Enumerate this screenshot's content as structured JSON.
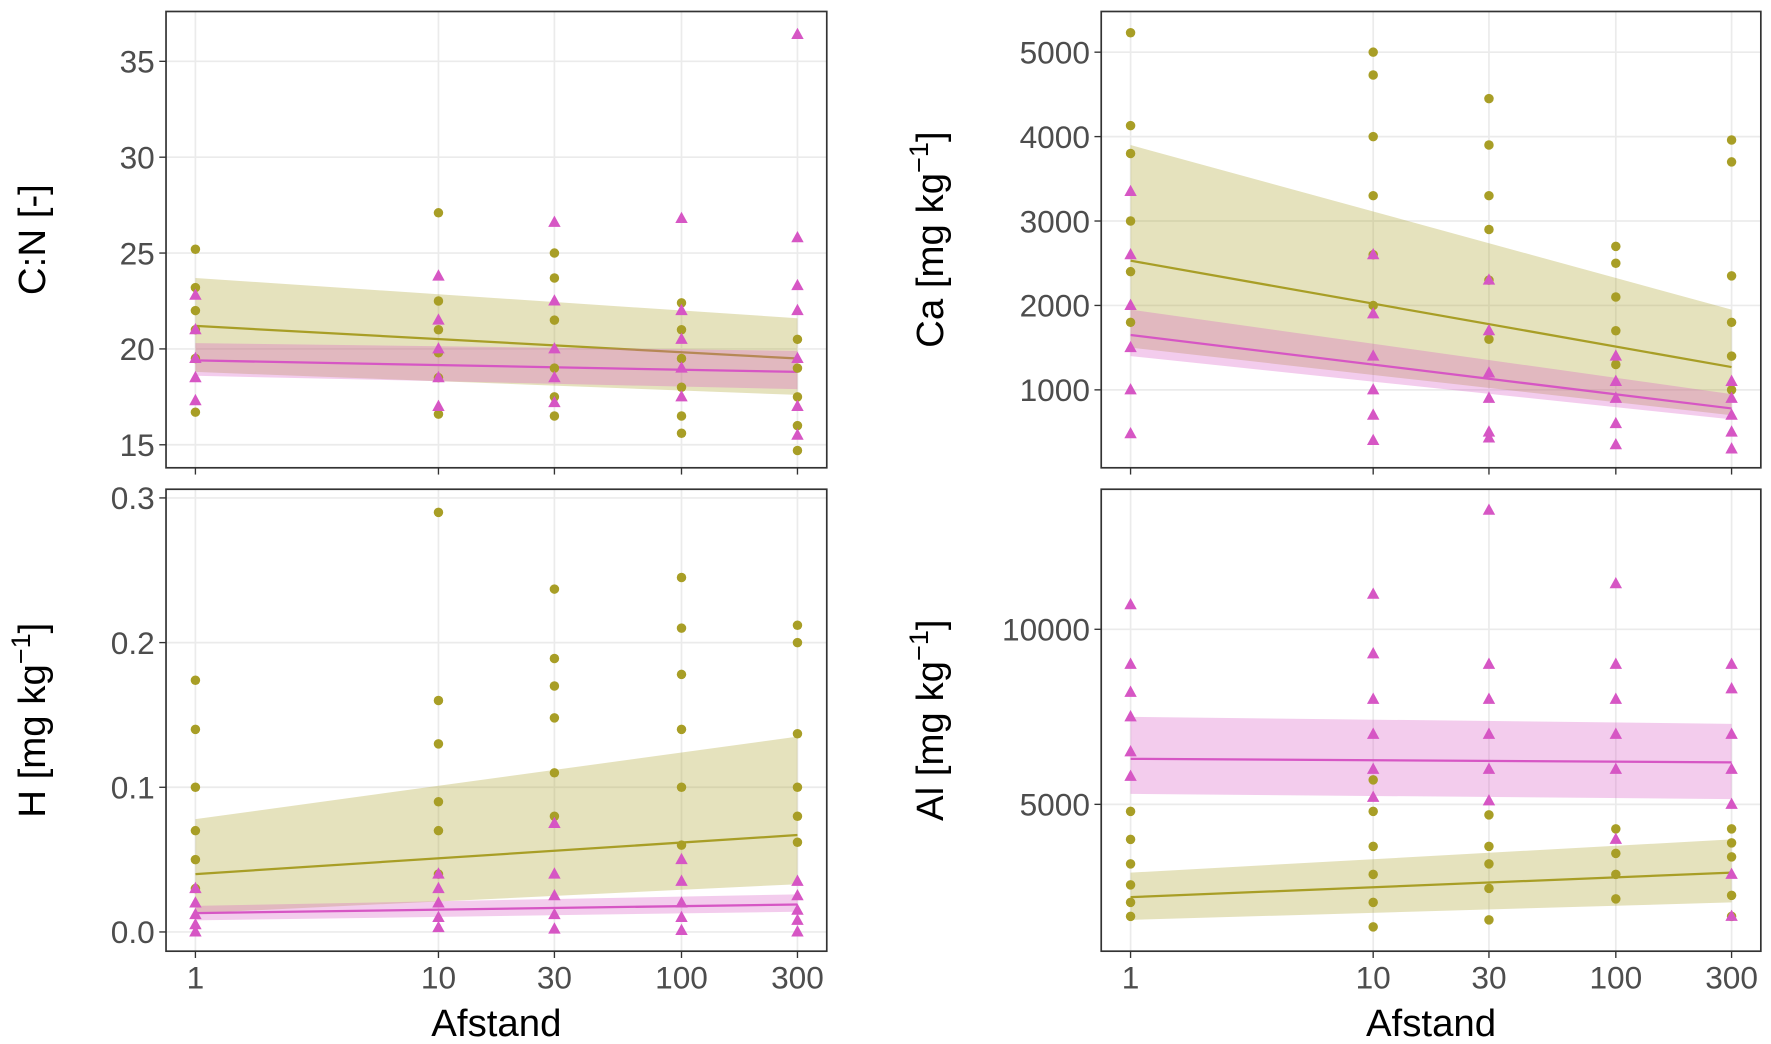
{
  "chart_data": [
    {
      "type": "scatter",
      "ylabel": [
        "C:N [-]"
      ],
      "xtick_labels": false,
      "log_x": true,
      "grid": true,
      "xlim": [
        0.757,
        396
      ],
      "xticks": [
        1,
        10,
        30,
        100,
        300
      ],
      "ylim": [
        13.8,
        37.6
      ],
      "yticks": [
        15,
        20,
        25,
        30,
        35
      ],
      "series": [
        {
          "color": "#a89e26",
          "marker": "circle",
          "x": [
            1,
            1,
            1,
            1,
            1,
            1,
            10,
            10,
            10,
            10,
            10,
            10,
            30,
            30,
            30,
            30,
            30,
            30,
            100,
            100,
            100,
            100,
            100,
            100,
            300,
            300,
            300,
            300,
            300
          ],
          "values": [
            25.2,
            23.2,
            22,
            21,
            19.5,
            16.7,
            27.1,
            22.5,
            21,
            19.8,
            18.5,
            16.6,
            25,
            23.7,
            21.5,
            19,
            17.5,
            16.5,
            22.4,
            21,
            19.5,
            18,
            16.5,
            15.6,
            20.5,
            19,
            17.5,
            16,
            14.7
          ],
          "fit": {
            "x": [
              1,
              300
            ],
            "values": [
              21.2,
              19.5
            ],
            "lower": [
              18.8,
              17.6
            ],
            "upper": [
              23.7,
              21.6
            ]
          }
        },
        {
          "color": "#d656c4",
          "marker": "triangle",
          "x": [
            1,
            1,
            1,
            1,
            1,
            10,
            10,
            10,
            10,
            10,
            30,
            30,
            30,
            30,
            30,
            100,
            100,
            100,
            100,
            100,
            300,
            300,
            300,
            300,
            300,
            300,
            300
          ],
          "values": [
            22.8,
            21,
            19.5,
            18.5,
            17.3,
            23.8,
            21.5,
            20,
            18.5,
            17,
            26.6,
            22.5,
            20,
            18.5,
            17.2,
            26.8,
            22,
            20.5,
            19,
            17.5,
            36.4,
            25.8,
            23.3,
            22,
            19.5,
            17,
            15.5
          ],
          "fit": {
            "x": [
              1,
              300
            ],
            "values": [
              19.4,
              18.8
            ],
            "lower": [
              18.6,
              17.9
            ],
            "upper": [
              20.3,
              19.9
            ]
          }
        }
      ]
    },
    {
      "type": "scatter",
      "ylabel": [
        "Ca [mg kg",
        "−1",
        "]"
      ],
      "xtick_labels": false,
      "log_x": true,
      "grid": true,
      "xlim": [
        0.757,
        396
      ],
      "xticks": [
        1,
        10,
        30,
        100,
        300
      ],
      "ylim": [
        77,
        5482
      ],
      "yticks": [
        1000,
        2000,
        3000,
        4000,
        5000
      ],
      "series": [
        {
          "color": "#a89e26",
          "marker": "circle",
          "x": [
            1,
            1,
            1,
            1,
            1,
            1,
            10,
            10,
            10,
            10,
            10,
            10,
            30,
            30,
            30,
            30,
            30,
            30,
            100,
            100,
            100,
            100,
            100,
            300,
            300,
            300,
            300,
            300,
            300
          ],
          "values": [
            5230,
            4130,
            3800,
            3000,
            2400,
            1800,
            5000,
            4730,
            4000,
            3300,
            2600,
            2000,
            4450,
            3900,
            3300,
            2900,
            2300,
            1600,
            2700,
            2500,
            2100,
            1700,
            1300,
            3960,
            3700,
            2350,
            1800,
            1400,
            1000
          ],
          "fit": {
            "x": [
              1,
              300
            ],
            "values": [
              2530,
              1270
            ],
            "lower": [
              1500,
              700
            ],
            "upper": [
              3900,
              1950
            ]
          }
        },
        {
          "color": "#d656c4",
          "marker": "triangle",
          "x": [
            1,
            1,
            1,
            1,
            1,
            1,
            10,
            10,
            10,
            10,
            10,
            10,
            30,
            30,
            30,
            30,
            30,
            30,
            100,
            100,
            100,
            100,
            100,
            300,
            300,
            300,
            300,
            300
          ],
          "values": [
            3350,
            2600,
            2000,
            1500,
            1000,
            480,
            2600,
            1900,
            1400,
            1000,
            700,
            400,
            2300,
            1700,
            1200,
            900,
            500,
            430,
            1400,
            1100,
            900,
            600,
            350,
            1100,
            900,
            700,
            500,
            300
          ],
          "fit": {
            "x": [
              1,
              300
            ],
            "values": [
              1650,
              780
            ],
            "lower": [
              1400,
              650
            ],
            "upper": [
              1950,
              950
            ]
          }
        }
      ]
    },
    {
      "type": "scatter",
      "ylabel": [
        "H [mg kg",
        "−1",
        "]"
      ],
      "xlabel": "Afstand",
      "xtick_labels": true,
      "log_x": true,
      "grid": true,
      "xlim": [
        0.757,
        396
      ],
      "xticks": [
        1,
        10,
        30,
        100,
        300
      ],
      "ylim": [
        -0.0133,
        0.306
      ],
      "yticks": [
        {
          "value": 0,
          "label": "0.0"
        },
        0.1,
        0.2,
        0.3
      ],
      "series": [
        {
          "color": "#a89e26",
          "marker": "circle",
          "x": [
            1,
            1,
            1,
            1,
            1,
            1,
            10,
            10,
            10,
            10,
            10,
            10,
            30,
            30,
            30,
            30,
            30,
            30,
            100,
            100,
            100,
            100,
            100,
            100,
            300,
            300,
            300,
            300,
            300,
            300
          ],
          "values": [
            0.174,
            0.14,
            0.1,
            0.07,
            0.05,
            0.03,
            0.29,
            0.16,
            0.13,
            0.09,
            0.07,
            0.04,
            0.237,
            0.189,
            0.17,
            0.148,
            0.11,
            0.08,
            0.245,
            0.21,
            0.178,
            0.14,
            0.1,
            0.06,
            0.212,
            0.2,
            0.137,
            0.1,
            0.08,
            0.062
          ],
          "fit": {
            "x": [
              1,
              300
            ],
            "values": [
              0.04,
              0.067
            ],
            "lower": [
              0.013,
              0.033
            ],
            "upper": [
              0.078,
              0.135
            ]
          }
        },
        {
          "color": "#d656c4",
          "marker": "triangle",
          "x": [
            1,
            1,
            1,
            1,
            1,
            10,
            10,
            10,
            10,
            10,
            30,
            30,
            30,
            30,
            30,
            100,
            100,
            100,
            100,
            100,
            300,
            300,
            300,
            300,
            300
          ],
          "values": [
            0.03,
            0.02,
            0.012,
            0.005,
            0.0,
            0.04,
            0.03,
            0.02,
            0.01,
            0.003,
            0.075,
            0.04,
            0.025,
            0.012,
            0.002,
            0.05,
            0.035,
            0.02,
            0.01,
            0.001,
            0.035,
            0.025,
            0.015,
            0.008,
            0.0
          ],
          "fit": {
            "x": [
              1,
              300
            ],
            "values": [
              0.013,
              0.019
            ],
            "lower": [
              0.008,
              0.014
            ],
            "upper": [
              0.018,
              0.026
            ]
          }
        }
      ]
    },
    {
      "type": "scatter",
      "ylabel": [
        "Al [mg kg",
        "−1",
        "]"
      ],
      "xlabel": "Afstand",
      "xtick_labels": true,
      "log_x": true,
      "grid": true,
      "xlim": [
        0.757,
        396
      ],
      "xticks": [
        1,
        10,
        30,
        100,
        300
      ],
      "ylim": [
        806,
        14000
      ],
      "yticks": [
        5000,
        10000
      ],
      "series": [
        {
          "color": "#a89e26",
          "marker": "circle",
          "x": [
            1,
            1,
            1,
            1,
            1,
            1,
            10,
            10,
            10,
            10,
            10,
            10,
            30,
            30,
            30,
            30,
            30,
            100,
            100,
            100,
            100,
            300,
            300,
            300,
            300,
            300
          ],
          "values": [
            4800,
            4000,
            3300,
            2700,
            2200,
            1800,
            5700,
            4800,
            3800,
            3000,
            2200,
            1500,
            4700,
            3800,
            3300,
            2600,
            1700,
            4300,
            3600,
            3000,
            2300,
            4300,
            3900,
            3500,
            2400,
            1800
          ],
          "fit": {
            "x": [
              1,
              300
            ],
            "values": [
              2350,
              3050
            ],
            "lower": [
              1700,
              2200
            ],
            "upper": [
              3050,
              4000
            ]
          }
        },
        {
          "color": "#d656c4",
          "marker": "triangle",
          "x": [
            1,
            1,
            1,
            1,
            1,
            1,
            10,
            10,
            10,
            10,
            10,
            10,
            30,
            30,
            30,
            30,
            30,
            30,
            100,
            100,
            100,
            100,
            100,
            100,
            300,
            300,
            300,
            300,
            300,
            300,
            300
          ],
          "values": [
            10700,
            9000,
            8200,
            7500,
            6500,
            5800,
            11000,
            9300,
            8000,
            7000,
            6000,
            5200,
            13400,
            9000,
            8000,
            7000,
            6000,
            5100,
            11300,
            9000,
            8000,
            7000,
            6000,
            4000,
            9000,
            8300,
            7000,
            6000,
            5000,
            3000,
            1800
          ],
          "fit": {
            "x": [
              1,
              300
            ],
            "values": [
              6300,
              6200
            ],
            "lower": [
              5300,
              5150
            ],
            "upper": [
              7500,
              7300
            ]
          }
        }
      ]
    }
  ]
}
